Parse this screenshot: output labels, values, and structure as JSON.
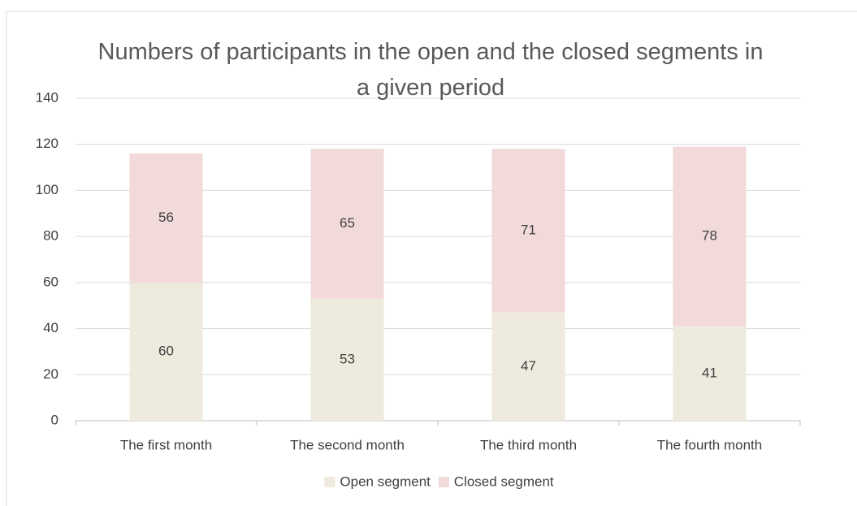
{
  "chart_data": {
    "type": "stacked_bar",
    "title": "Numbers of participants in the open and the closed segments in a given period",
    "categories": [
      "The first month",
      "The second month",
      "The third month",
      "The fourth month"
    ],
    "series": [
      {
        "name": "Open segment",
        "color": "#eeeadd",
        "values": [
          60,
          53,
          47,
          41
        ]
      },
      {
        "name": "Closed segment",
        "color": "#f2d9da",
        "values": [
          56,
          65,
          71,
          78
        ]
      }
    ],
    "ylim": [
      0,
      140
    ],
    "yticks": [
      0,
      20,
      40,
      60,
      80,
      100,
      120,
      140
    ],
    "grid": true,
    "legend": "bottom"
  }
}
